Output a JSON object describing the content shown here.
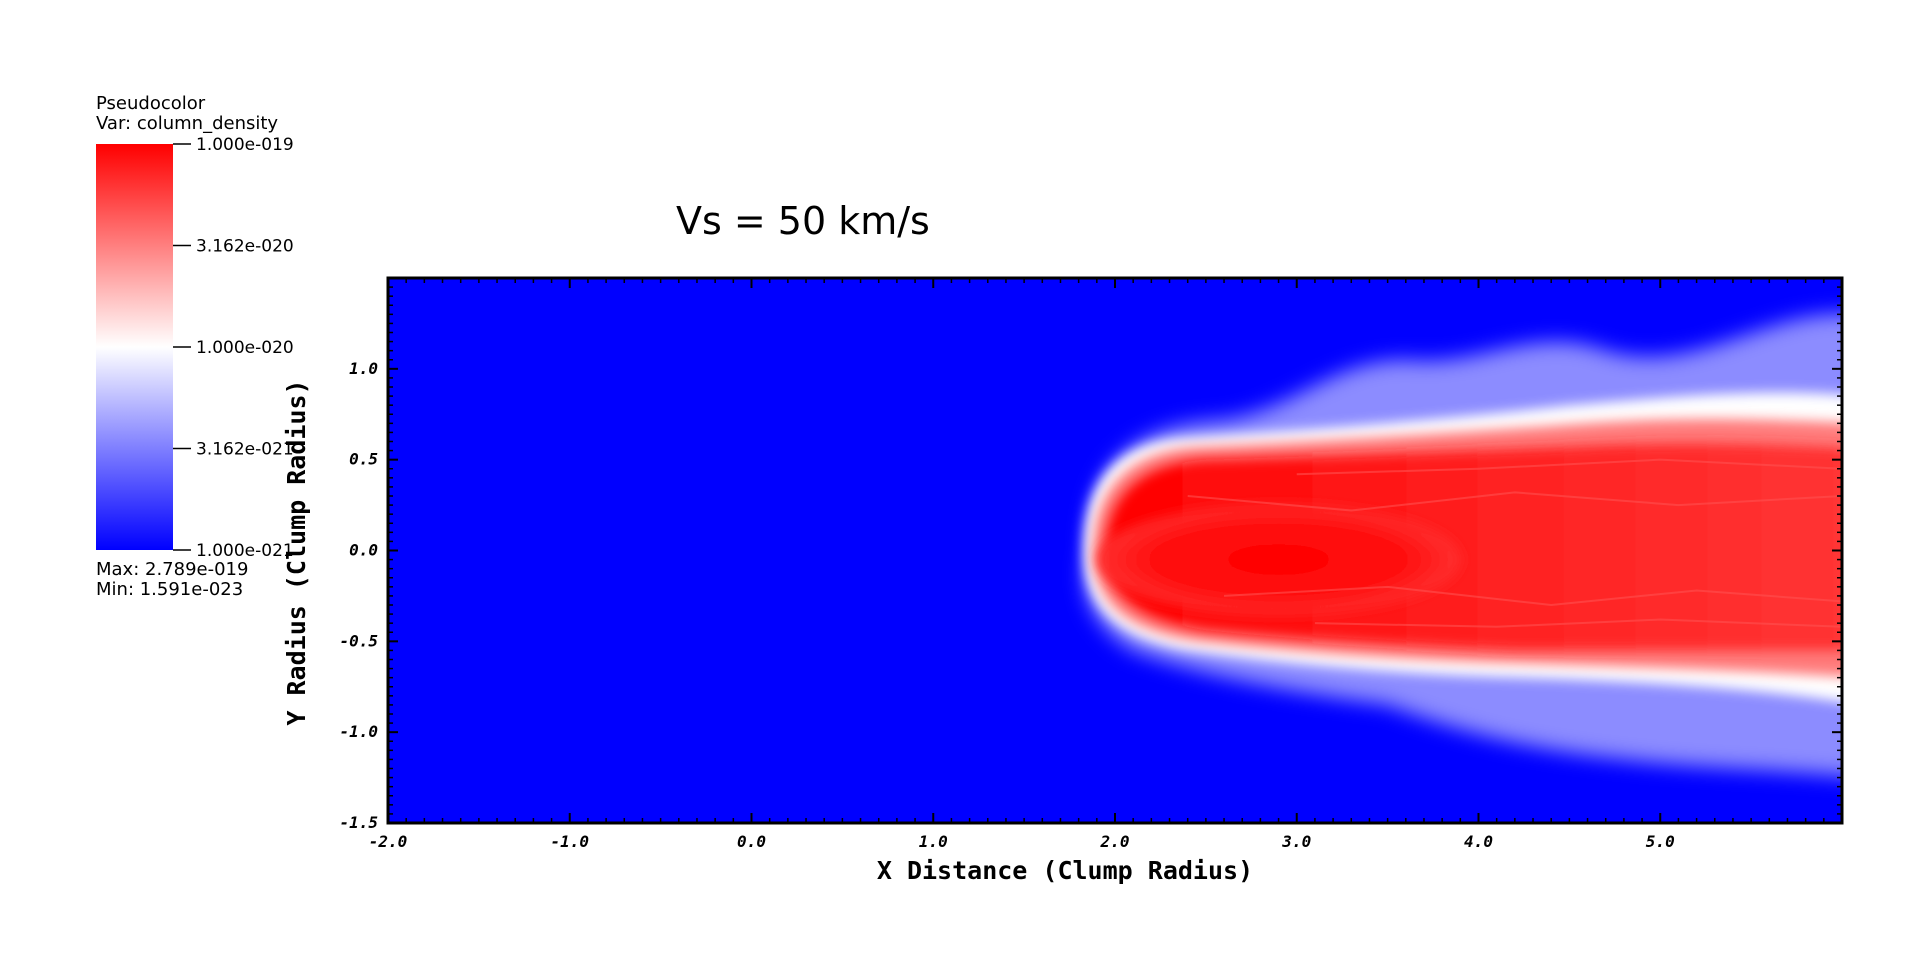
{
  "legend": {
    "title": "Pseudocolor",
    "variable": "Var: column_density",
    "ticks": [
      "1.000e-019",
      "3.162e-020",
      "1.000e-020",
      "3.162e-021",
      "1.000e-021"
    ],
    "max": "Max:  2.789e-019",
    "min": "Min:  1.591e-023",
    "colors": {
      "high": "#ff0000",
      "mid": "#ffffff",
      "low": "#0000ff"
    }
  },
  "chart_data": {
    "type": "heatmap",
    "title": "Vs = 50 km/s",
    "xlabel": "X Distance (Clump Radius)",
    "ylabel": "Y Radius (Clump Radius)",
    "xlim": [
      -2.0,
      6.0
    ],
    "ylim": [
      -1.5,
      1.5
    ],
    "x_ticks": [
      "-2.0",
      "-1.0",
      "0.0",
      "1.0",
      "2.0",
      "3.0",
      "4.0",
      "5.0"
    ],
    "y_ticks": [
      "-1.5",
      "-1.0",
      "-0.5",
      "0.0",
      "0.5",
      "1.0"
    ],
    "color_scale": "log",
    "color_range": [
      1e-21,
      1e-19
    ],
    "background_color": "#0000ff",
    "feature": "dense clump with turbulent tail, head near x = 1.8, extending to the right edge"
  }
}
